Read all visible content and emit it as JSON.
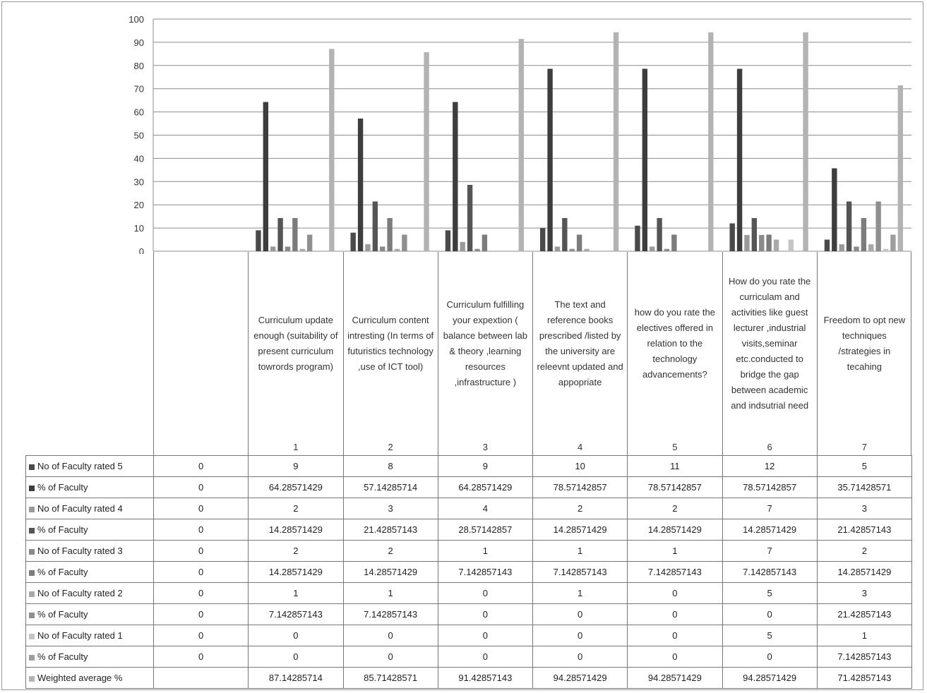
{
  "chart_data": {
    "type": "bar",
    "ylim": [
      0,
      100
    ],
    "yticks": [
      0,
      10,
      20,
      30,
      40,
      50,
      60,
      70,
      80,
      90,
      100
    ],
    "grid": true,
    "legend": "table-left",
    "categories": [
      {
        "number": "",
        "label": ""
      },
      {
        "number": "1",
        "label": "Curriculum update enough (suitability of present curriculum towrords program)"
      },
      {
        "number": "2",
        "label": "Curriculum content intresting (In terms of futuristics technology ,use of ICT tool)"
      },
      {
        "number": "3",
        "label": "Curriculum fulfilling your expextion ( balance between lab & theory ,learning resources ,infrastructure )"
      },
      {
        "number": "4",
        "label": "The text and reference books prescribed /listed by the university are releevnt updated and appopriate"
      },
      {
        "number": "5",
        "label": "how do you rate the electives offered in relation to the technology advancements?"
      },
      {
        "number": "6",
        "label": "How do you rate the curriculam and activities like guest lecturer ,industrial visits,seminar etc.conducted to bridge the gap between academic and indsutrial need"
      },
      {
        "number": "7",
        "label": "Freedom to opt new techniques /strategies in tecahing"
      }
    ],
    "series": [
      {
        "name": "No of Faculty  rated 5",
        "color": "#4a4a4a",
        "values": [
          0,
          9,
          8,
          9,
          10,
          11,
          12,
          5
        ],
        "labels": [
          "0",
          "9",
          "8",
          "9",
          "10",
          "11",
          "12",
          "5"
        ]
      },
      {
        "name": "% of Faculty",
        "color": "#3d3d3d",
        "values": [
          0,
          64.28571429,
          57.14285714,
          64.28571429,
          78.57142857,
          78.57142857,
          78.57142857,
          35.71428571
        ],
        "labels": [
          "0",
          "64.28571429",
          "57.14285714",
          "64.28571429",
          "78.57142857",
          "78.57142857",
          "78.57142857",
          "35.71428571"
        ]
      },
      {
        "name": "No of Faculty  rated 4",
        "color": "#9a9a9a",
        "values": [
          0,
          2,
          3,
          4,
          2,
          2,
          7,
          3
        ],
        "labels": [
          "0",
          "2",
          "3",
          "4",
          "2",
          "2",
          "7",
          "3"
        ]
      },
      {
        "name": "% of Faculty",
        "color": "#555555",
        "values": [
          0,
          14.28571429,
          21.42857143,
          28.57142857,
          14.28571429,
          14.28571429,
          14.28571429,
          21.42857143
        ],
        "labels": [
          "0",
          "14.28571429",
          "21.42857143",
          "28.57142857",
          "14.28571429",
          "14.28571429",
          "14.28571429",
          "21.42857143"
        ]
      },
      {
        "name": "No of Faculty  rated 3",
        "color": "#8a8a8a",
        "values": [
          0,
          2,
          2,
          1,
          1,
          1,
          7,
          2
        ],
        "labels": [
          "0",
          "2",
          "2",
          "1",
          "1",
          "1",
          "7",
          "2"
        ]
      },
      {
        "name": "% of Faculty",
        "color": "#7c7c7c",
        "values": [
          0,
          14.28571429,
          14.28571429,
          7.142857143,
          7.142857143,
          7.142857143,
          7.142857143,
          14.28571429
        ],
        "labels": [
          "0",
          "14.28571429",
          "14.28571429",
          "7.142857143",
          "7.142857143",
          "7.142857143",
          "7.142857143",
          "14.28571429"
        ]
      },
      {
        "name": "No of Faculty  rated 2",
        "color": "#a8a8a8",
        "values": [
          0,
          1,
          1,
          0,
          1,
          0,
          5,
          3
        ],
        "labels": [
          "0",
          "1",
          "1",
          "0",
          "1",
          "0",
          "5",
          "3"
        ]
      },
      {
        "name": "% of Faculty",
        "color": "#8f8f8f",
        "values": [
          0,
          7.142857143,
          7.142857143,
          0,
          0,
          0,
          0,
          21.42857143
        ],
        "labels": [
          "0",
          "7.142857143",
          "7.142857143",
          "0",
          "0",
          "0",
          "0",
          "21.42857143"
        ]
      },
      {
        "name": "No of Faculty  rated 1",
        "color": "#c4c4c4",
        "values": [
          0,
          0,
          0,
          0,
          0,
          0,
          5,
          1
        ],
        "labels": [
          "0",
          "0",
          "0",
          "0",
          "0",
          "0",
          "5",
          "1"
        ]
      },
      {
        "name": "% of Faculty",
        "color": "#9e9e9e",
        "values": [
          0,
          0,
          0,
          0,
          0,
          0,
          0,
          7.142857143
        ],
        "labels": [
          "0",
          "0",
          "0",
          "0",
          "0",
          "0",
          "0",
          "7.142857143"
        ]
      },
      {
        "name": "Weighted average %",
        "color": "#b3b3b3",
        "values": [
          0,
          87.14285714,
          85.71428571,
          91.42857143,
          94.28571429,
          94.28571429,
          94.28571429,
          71.42857143
        ],
        "labels": [
          "",
          "87.14285714",
          "85.71428571",
          "91.42857143",
          "94.28571429",
          "94.28571429",
          "94.28571429",
          "71.42857143"
        ]
      }
    ]
  }
}
